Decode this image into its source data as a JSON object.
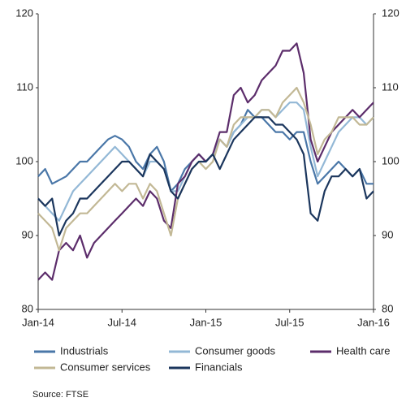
{
  "chart_data": {
    "type": "line",
    "x": [
      "Jan-14",
      null,
      null,
      null,
      null,
      null,
      null,
      null,
      null,
      null,
      null,
      null,
      "Jul-14",
      null,
      null,
      null,
      null,
      null,
      null,
      null,
      null,
      null,
      null,
      null,
      "Jan-15",
      null,
      null,
      null,
      null,
      null,
      null,
      null,
      null,
      null,
      null,
      null,
      "Jul-15",
      null,
      null,
      null,
      null,
      null,
      null,
      null,
      null,
      null,
      null,
      null,
      "Jan-16"
    ],
    "series": [
      {
        "name": "Industrials",
        "color": "#4a77a8",
        "values": [
          98,
          99,
          97,
          97.5,
          98,
          99,
          100,
          100,
          101,
          102,
          103,
          103.5,
          103,
          102,
          100,
          99,
          101,
          102,
          100,
          96,
          97,
          99,
          100,
          101,
          100,
          101,
          103,
          102,
          104,
          105,
          107,
          106,
          106,
          105,
          104,
          104,
          103,
          104,
          104,
          100,
          97,
          98,
          99,
          100,
          99,
          98,
          99,
          97,
          97
        ]
      },
      {
        "name": "Consumer goods",
        "color": "#93b8d6",
        "values": [
          95,
          94,
          93,
          92,
          94,
          96,
          97,
          98,
          99,
          100,
          101,
          102,
          101,
          100,
          99,
          98,
          100,
          100,
          99,
          96,
          96,
          98,
          100,
          101,
          100,
          101,
          103,
          102,
          104,
          105,
          106,
          106,
          107,
          107,
          106,
          107,
          108,
          108,
          107,
          102,
          98,
          100,
          102,
          104,
          105,
          106,
          106,
          105,
          106
        ]
      },
      {
        "name": "Health care",
        "color": "#5c2d6b",
        "values": [
          84,
          85,
          84,
          88,
          89,
          88,
          90,
          87,
          89,
          90,
          91,
          92,
          93,
          94,
          95,
          94,
          96,
          95,
          92,
          91,
          97,
          98,
          100,
          101,
          100,
          101,
          104,
          104,
          109,
          110,
          108,
          109,
          111,
          112,
          113,
          115,
          115,
          116,
          112,
          103,
          100,
          102,
          104,
          105,
          106,
          107,
          106,
          107,
          108
        ]
      },
      {
        "name": "Consumer services",
        "color": "#c2b895",
        "values": [
          93,
          92,
          91,
          88,
          91,
          92,
          93,
          93,
          94,
          95,
          96,
          97,
          96,
          97,
          97,
          95,
          97,
          96,
          93,
          90,
          95,
          97,
          99,
          100,
          99,
          100,
          103,
          102,
          105,
          106,
          106,
          106,
          107,
          107,
          106,
          108,
          109,
          110,
          108,
          105,
          101,
          103,
          104,
          106,
          106,
          106,
          105,
          105,
          106
        ]
      },
      {
        "name": "Financials",
        "color": "#1b365d",
        "values": [
          95,
          94,
          95,
          90,
          92,
          93,
          95,
          95,
          96,
          97,
          98,
          99,
          100,
          100,
          99,
          98,
          101,
          100,
          99,
          96,
          95,
          97,
          99,
          100,
          100,
          101,
          99,
          101,
          103,
          104,
          105,
          106,
          106,
          106,
          105,
          105,
          104,
          103,
          101,
          93,
          92,
          96,
          98,
          98,
          99,
          98,
          99,
          95,
          96
        ]
      }
    ],
    "ylim": [
      80,
      120
    ],
    "yticks": [
      80,
      90,
      100,
      110,
      120
    ],
    "y2lim": [
      80,
      120
    ],
    "y2ticks": [
      80,
      90,
      100,
      110,
      120
    ],
    "source": "Source: FTSE"
  }
}
